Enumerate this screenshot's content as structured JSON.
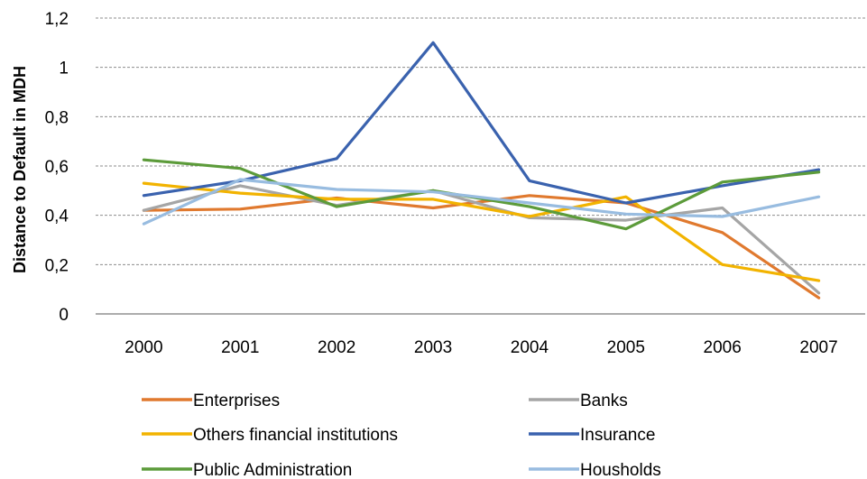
{
  "chart_data": {
    "type": "line",
    "title": "",
    "xlabel": "",
    "ylabel": "Distance to Default in MDH",
    "categories": [
      "2000",
      "2001",
      "2002",
      "2003",
      "2004",
      "2005",
      "2006",
      "2007"
    ],
    "ylim": [
      0,
      1.2
    ],
    "yticks": [
      "0",
      "0,2",
      "0,4",
      "0,6",
      "0,8",
      "1",
      "1,2"
    ],
    "grid": "horizontal dashed",
    "legend_position": "bottom",
    "series": [
      {
        "name": "Enterprises",
        "color": "#E0792E",
        "values": [
          0.42,
          0.425,
          0.47,
          0.43,
          0.48,
          0.45,
          0.33,
          0.065
        ]
      },
      {
        "name": "Banks",
        "color": "#A5A5A5",
        "values": [
          0.42,
          0.52,
          0.44,
          0.5,
          0.39,
          0.38,
          0.43,
          0.085
        ]
      },
      {
        "name": "Others financial institutions",
        "color": "#F2B300",
        "values": [
          0.53,
          0.49,
          0.465,
          0.465,
          0.395,
          0.475,
          0.2,
          0.135
        ]
      },
      {
        "name": "Insurance",
        "color": "#3A62AE",
        "values": [
          0.48,
          0.54,
          0.63,
          1.1,
          0.54,
          0.45,
          0.52,
          0.585
        ]
      },
      {
        "name": "Public Administration",
        "color": "#5C9B3A",
        "values": [
          0.625,
          0.59,
          0.435,
          0.5,
          0.435,
          0.345,
          0.535,
          0.575
        ]
      },
      {
        "name": "Housholds",
        "color": "#98BCE0",
        "values": [
          0.365,
          0.545,
          0.505,
          0.495,
          0.45,
          0.405,
          0.395,
          0.475
        ]
      }
    ]
  }
}
